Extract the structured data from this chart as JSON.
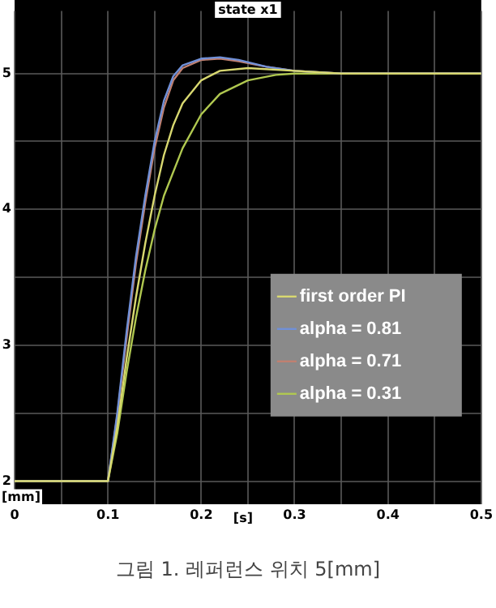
{
  "chart_data": {
    "type": "line",
    "title": "state x1",
    "xlabel": "[s]",
    "ylabel": "[mm]",
    "annotations": [
      "그림 1. 레퍼런스 위치 5[mm]"
    ],
    "xlim": [
      0,
      0.5
    ],
    "ylim": [
      1.83,
      5.46
    ],
    "xticks": [
      0,
      {
        "value": 0.05,
        "label": null
      },
      0.1,
      {
        "value": 0.15,
        "label": null
      },
      0.2,
      {
        "value": 0.25,
        "label": null
      },
      0.3,
      {
        "value": 0.35,
        "label": null
      },
      0.4,
      {
        "value": 0.45,
        "label": null
      },
      0.5
    ],
    "yticks": [
      2,
      {
        "value": 2.5,
        "label": null
      },
      3,
      {
        "value": 3.5,
        "label": null
      },
      4,
      {
        "value": 4.5,
        "label": null
      },
      5
    ],
    "grid": true,
    "legend": "right",
    "marker": "none",
    "line_style": "solid",
    "series": [
      {
        "name": "first order PI",
        "color": "#d8d870",
        "x": [
          0,
          0.1,
          0.11,
          0.12,
          0.13,
          0.14,
          0.15,
          0.16,
          0.17,
          0.18,
          0.2,
          0.22,
          0.25,
          0.3,
          0.35,
          0.5
        ],
        "values": [
          2,
          2,
          2.4,
          2.9,
          3.35,
          3.75,
          4.1,
          4.4,
          4.62,
          4.78,
          4.95,
          5.02,
          5.04,
          5.02,
          5.0,
          5.0
        ]
      },
      {
        "name": "alpha = 0.81",
        "color": "#7090d8",
        "x": [
          0,
          0.1,
          0.11,
          0.12,
          0.13,
          0.14,
          0.15,
          0.16,
          0.17,
          0.18,
          0.2,
          0.22,
          0.24,
          0.27,
          0.3,
          0.35,
          0.5
        ],
        "values": [
          2,
          2,
          2.5,
          3.1,
          3.65,
          4.1,
          4.5,
          4.8,
          4.98,
          5.06,
          5.11,
          5.12,
          5.1,
          5.05,
          5.02,
          5.0,
          5.0
        ]
      },
      {
        "name": "alpha = 0.71",
        "color": "#c08070",
        "x": [
          0,
          0.1,
          0.11,
          0.12,
          0.13,
          0.14,
          0.15,
          0.16,
          0.17,
          0.18,
          0.2,
          0.22,
          0.24,
          0.27,
          0.3,
          0.35,
          0.5
        ],
        "values": [
          2,
          2,
          2.48,
          3.05,
          3.6,
          4.05,
          4.45,
          4.75,
          4.95,
          5.04,
          5.1,
          5.11,
          5.09,
          5.05,
          5.02,
          5.0,
          5.0
        ]
      },
      {
        "name": "alpha = 0.31",
        "color": "#b0c850",
        "x": [
          0,
          0.1,
          0.11,
          0.12,
          0.13,
          0.14,
          0.15,
          0.16,
          0.18,
          0.2,
          0.22,
          0.25,
          0.28,
          0.3,
          0.35,
          0.5
        ],
        "values": [
          2,
          2,
          2.35,
          2.8,
          3.2,
          3.55,
          3.85,
          4.1,
          4.45,
          4.7,
          4.85,
          4.95,
          4.99,
          5.0,
          5.0,
          5.0
        ]
      }
    ]
  }
}
